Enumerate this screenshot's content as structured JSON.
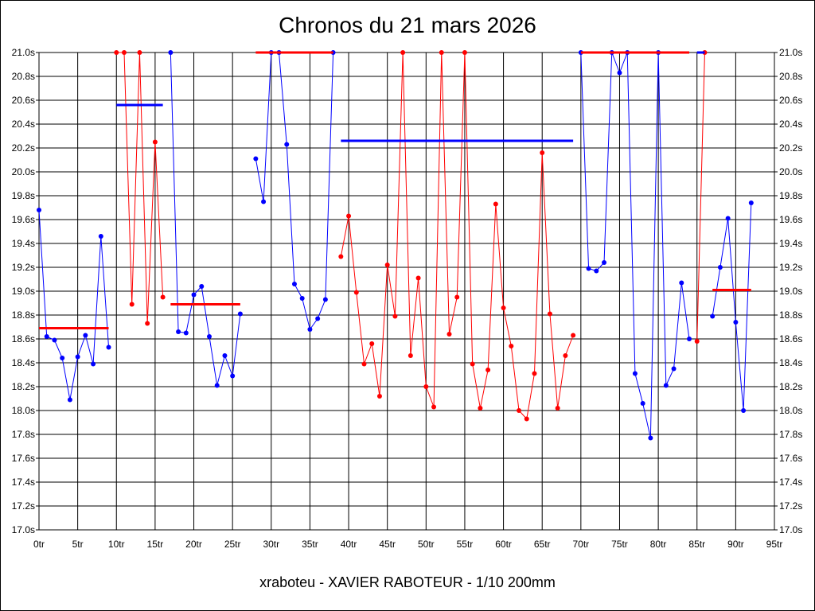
{
  "chart_data": {
    "type": "line",
    "title": "Chronos du 21 mars 2026",
    "footer": "xraboteu - XAVIER RABOTEUR - 1/10 200mm",
    "xlim": [
      0,
      95
    ],
    "ylim": [
      17.0,
      21.0
    ],
    "x_ticks": [
      0,
      5,
      10,
      15,
      20,
      25,
      30,
      35,
      40,
      45,
      50,
      55,
      60,
      65,
      70,
      75,
      80,
      85,
      90,
      95
    ],
    "x_tick_labels": [
      "0tr",
      "5tr",
      "10tr",
      "15tr",
      "20tr",
      "25tr",
      "30tr",
      "35tr",
      "40tr",
      "45tr",
      "50tr",
      "55tr",
      "60tr",
      "65tr",
      "70tr",
      "75tr",
      "80tr",
      "85tr",
      "90tr",
      "95tr"
    ],
    "y_ticks": [
      17.0,
      17.2,
      17.4,
      17.6,
      17.8,
      18.0,
      18.2,
      18.4,
      18.6,
      18.8,
      19.0,
      19.2,
      19.4,
      19.6,
      19.8,
      20.0,
      20.2,
      20.4,
      20.6,
      20.8,
      21.0
    ],
    "y_tick_labels": [
      "17.0s",
      "17.2s",
      "17.4s",
      "17.6s",
      "17.8s",
      "18.0s",
      "18.2s",
      "18.4s",
      "18.6s",
      "18.8s",
      "19.0s",
      "19.2s",
      "19.4s",
      "19.6s",
      "19.8s",
      "20.0s",
      "20.2s",
      "20.4s",
      "20.6s",
      "20.8s",
      "21.0s"
    ],
    "grid": true,
    "segments": [
      {
        "color": "#0000ff",
        "points": [
          [
            0,
            19.68
          ],
          [
            1,
            18.62
          ],
          [
            2,
            18.59
          ],
          [
            3,
            18.44
          ],
          [
            4,
            18.09
          ],
          [
            5,
            18.45
          ],
          [
            6,
            18.63
          ],
          [
            7,
            18.39
          ],
          [
            8,
            19.46
          ],
          [
            9,
            18.53
          ]
        ],
        "average": 18.69
      },
      {
        "color": "#ff0000",
        "points": [
          [
            10,
            21.0
          ],
          [
            11,
            21.0
          ],
          [
            12,
            18.89
          ],
          [
            13,
            21.0
          ],
          [
            14,
            18.73
          ],
          [
            15,
            20.25
          ],
          [
            16,
            18.95
          ]
        ],
        "average": 20.56
      },
      {
        "color": "#0000ff",
        "points": [
          [
            17,
            21.0
          ],
          [
            18,
            18.66
          ],
          [
            19,
            18.65
          ],
          [
            20,
            18.97
          ],
          [
            21,
            19.04
          ],
          [
            22,
            18.62
          ],
          [
            23,
            18.21
          ],
          [
            24,
            18.46
          ],
          [
            25,
            18.29
          ],
          [
            26,
            18.81
          ]
        ],
        "average": 18.89
      },
      {
        "color": "#0000ff",
        "points": [
          [
            28,
            20.11
          ],
          [
            29,
            19.75
          ],
          [
            30,
            21.0
          ],
          [
            31,
            21.0
          ],
          [
            32,
            20.23
          ],
          [
            33,
            19.06
          ],
          [
            34,
            18.94
          ],
          [
            35,
            18.68
          ],
          [
            36,
            18.77
          ],
          [
            37,
            18.93
          ],
          [
            38,
            21.0
          ]
        ],
        "average": 21.0,
        "average_color": "#ff0000"
      },
      {
        "color": "#ff0000",
        "points": [
          [
            39,
            19.29
          ],
          [
            40,
            19.63
          ],
          [
            41,
            18.99
          ],
          [
            42,
            18.39
          ],
          [
            43,
            18.56
          ],
          [
            44,
            18.12
          ],
          [
            45,
            19.22
          ],
          [
            46,
            18.79
          ],
          [
            47,
            21.0
          ],
          [
            48,
            18.46
          ],
          [
            49,
            19.11
          ],
          [
            50,
            18.2
          ],
          [
            51,
            18.03
          ],
          [
            52,
            21.0
          ],
          [
            53,
            18.64
          ],
          [
            54,
            18.95
          ],
          [
            55,
            21.0
          ],
          [
            56,
            18.39
          ],
          [
            57,
            18.02
          ],
          [
            58,
            18.34
          ],
          [
            59,
            19.73
          ],
          [
            60,
            18.86
          ],
          [
            61,
            18.54
          ],
          [
            62,
            18.0
          ],
          [
            63,
            17.93
          ],
          [
            64,
            18.31
          ],
          [
            65,
            20.16
          ],
          [
            66,
            18.81
          ],
          [
            67,
            18.02
          ],
          [
            68,
            18.46
          ],
          [
            69,
            18.63
          ]
        ],
        "average": 20.26,
        "average_color": "#0000ff"
      },
      {
        "color": "#0000ff",
        "points": [
          [
            70,
            21.0
          ],
          [
            71,
            19.19
          ],
          [
            72,
            19.17
          ],
          [
            73,
            19.24
          ],
          [
            74,
            21.0
          ],
          [
            75,
            20.83
          ],
          [
            76,
            21.0
          ],
          [
            77,
            18.31
          ],
          [
            78,
            18.06
          ],
          [
            79,
            17.77
          ],
          [
            80,
            21.0
          ],
          [
            81,
            18.21
          ],
          [
            82,
            18.35
          ],
          [
            83,
            19.07
          ],
          [
            84,
            18.6
          ]
        ],
        "average": 21.0,
        "average_color": "#ff0000"
      },
      {
        "color": "#ff0000",
        "points": [
          [
            85,
            18.58
          ],
          [
            86,
            21.0
          ]
        ],
        "average": 21.0,
        "average_color": "#0000ff"
      },
      {
        "color": "#0000ff",
        "points": [
          [
            87,
            18.79
          ],
          [
            88,
            19.2
          ],
          [
            89,
            19.61
          ],
          [
            90,
            18.74
          ],
          [
            91,
            18.0
          ],
          [
            92,
            19.74
          ]
        ],
        "average": 19.01,
        "average_color": "#ff0000"
      }
    ],
    "average_lines": [
      {
        "x": [
          0,
          9
        ],
        "y": 18.69,
        "color": "#ff0000"
      },
      {
        "x": [
          10,
          16
        ],
        "y": 20.56,
        "color": "#0000ff"
      },
      {
        "x": [
          17,
          26
        ],
        "y": 18.89,
        "color": "#ff0000"
      },
      {
        "x": [
          28,
          38
        ],
        "y": 21.0,
        "color": "#ff0000"
      },
      {
        "x": [
          39,
          69
        ],
        "y": 20.26,
        "color": "#0000ff"
      },
      {
        "x": [
          70,
          84
        ],
        "y": 21.0,
        "color": "#ff0000"
      },
      {
        "x": [
          85,
          86
        ],
        "y": 21.0,
        "color": "#0000ff"
      },
      {
        "x": [
          87,
          92
        ],
        "y": 19.01,
        "color": "#ff0000"
      }
    ]
  }
}
